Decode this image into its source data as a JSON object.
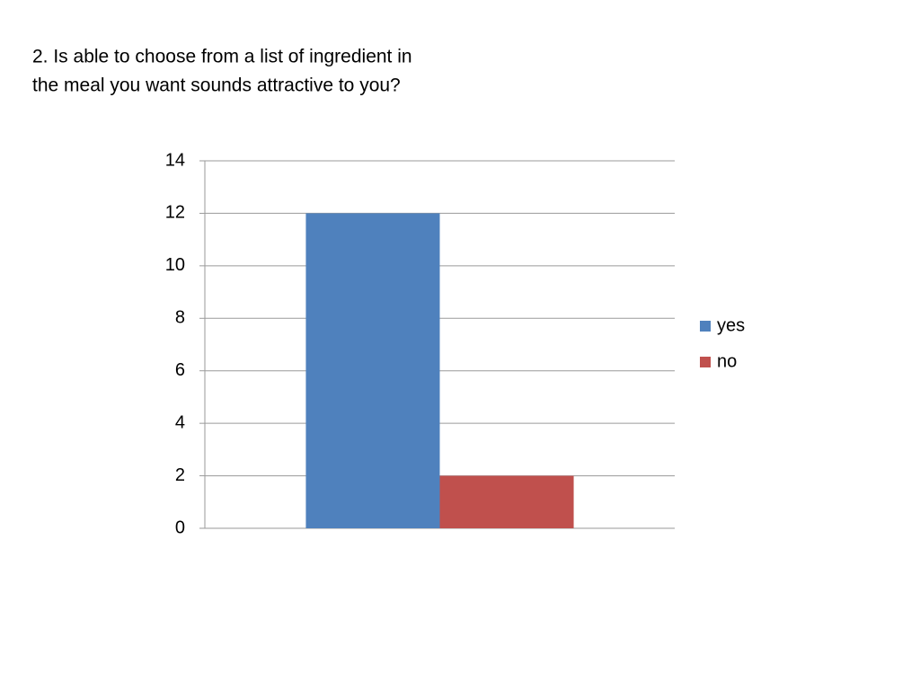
{
  "chart_data": {
    "type": "bar",
    "title": [
      "2. Is able to choose from a list of ingredient in",
      "the meal you want sounds attractive to you?"
    ],
    "categories": [
      null
    ],
    "series": [
      {
        "name": "yes",
        "color": "#4f81bd",
        "values": [
          12
        ]
      },
      {
        "name": "no",
        "color": "#c0504d",
        "values": [
          2
        ]
      }
    ],
    "ylim": [
      0,
      14
    ],
    "yticks": [
      0,
      2,
      4,
      6,
      8,
      10,
      12,
      14
    ],
    "grid": true,
    "legend": "right"
  }
}
